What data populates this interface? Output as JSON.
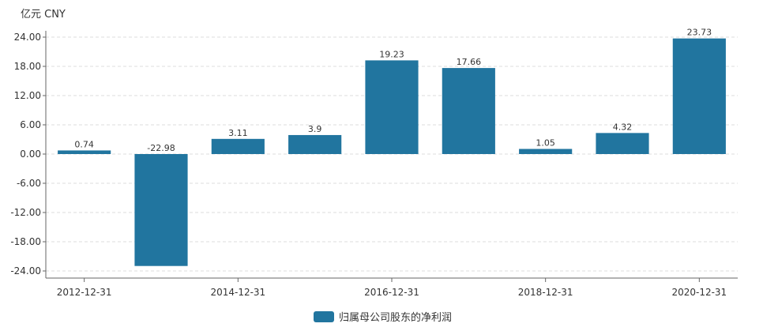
{
  "chart_data": {
    "type": "bar",
    "title": "",
    "unit_label": "亿元  CNY",
    "xlabel": "",
    "ylabel": "",
    "categories": [
      "2012-12-31",
      "2013-12-31",
      "2014-12-31",
      "2015-12-31",
      "2016-12-31",
      "2017-12-31",
      "2018-12-31",
      "2019-12-31",
      "2020-12-31"
    ],
    "x_tick_labels": [
      "2012-12-31",
      "",
      "2014-12-31",
      "",
      "2016-12-31",
      "",
      "2018-12-31",
      "",
      "2020-12-31"
    ],
    "series": [
      {
        "name": "归属母公司股东的净利润",
        "color": "#21759f",
        "values": [
          0.74,
          -22.98,
          3.11,
          3.9,
          19.23,
          17.66,
          1.05,
          4.32,
          23.73
        ],
        "labels": [
          "0.74",
          "-22.98",
          "3.11",
          "3.9",
          "19.23",
          "17.66",
          "1.05",
          "4.32",
          "23.73"
        ]
      }
    ],
    "ylim": [
      -24,
      24
    ],
    "y_ticks": [
      24,
      18,
      12,
      6,
      0,
      -6,
      -12,
      -18,
      -24
    ],
    "y_tick_labels": [
      "24.00",
      "18.00",
      "12.00",
      "6.00",
      "0.00",
      "-6.00",
      "-12.00",
      "-18.00",
      "-24.00"
    ],
    "grid": true,
    "legend_position": "bottom-center"
  }
}
